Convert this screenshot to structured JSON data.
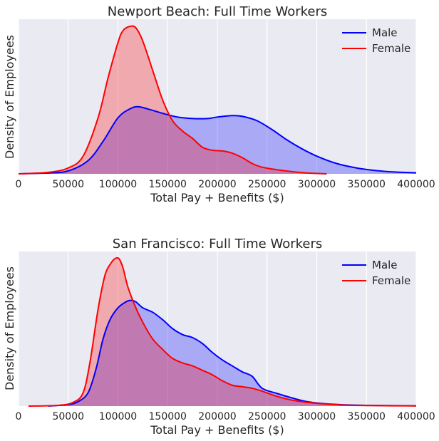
{
  "chart_data": [
    {
      "type": "area",
      "title": "Newport Beach: Full Time Workers",
      "xlabel": "Total Pay + Benefits ($)",
      "ylabel": "Density of Employees",
      "xlim": [
        0,
        400000
      ],
      "ylim": [
        0,
        1.0
      ],
      "xticks": [
        "0",
        "50000",
        "100000",
        "150000",
        "200000",
        "250000",
        "300000",
        "350000",
        "400000"
      ],
      "grid": "vertical",
      "legend": "top-right",
      "series": [
        {
          "name": "Male",
          "color": "#0000ff",
          "fill": "#a9aff7",
          "x": [
            0,
            30000,
            50000,
            70000,
            85000,
            100000,
            112000,
            120000,
            130000,
            145000,
            160000,
            175000,
            190000,
            200000,
            215000,
            225000,
            240000,
            255000,
            270000,
            285000,
            300000,
            320000,
            340000,
            360000,
            380000,
            400000
          ],
          "y": [
            0,
            0.006,
            0.02,
            0.09,
            0.22,
            0.38,
            0.44,
            0.455,
            0.44,
            0.41,
            0.385,
            0.375,
            0.375,
            0.385,
            0.395,
            0.39,
            0.36,
            0.3,
            0.23,
            0.17,
            0.12,
            0.07,
            0.04,
            0.022,
            0.012,
            0.007
          ]
        },
        {
          "name": "Female",
          "color": "#ff0000",
          "fill": "#f2b0b6",
          "x": [
            0,
            30000,
            50000,
            65000,
            80000,
            90000,
            100000,
            105000,
            112000,
            118000,
            125000,
            135000,
            145000,
            155000,
            165000,
            175000,
            185000,
            195000,
            205000,
            215000,
            225000,
            235000,
            245000,
            260000,
            275000,
            290000,
            310000
          ],
          "y": [
            0,
            0.01,
            0.04,
            0.12,
            0.38,
            0.65,
            0.89,
            0.97,
            1.0,
            0.99,
            0.9,
            0.7,
            0.5,
            0.36,
            0.29,
            0.24,
            0.18,
            0.16,
            0.155,
            0.14,
            0.11,
            0.07,
            0.045,
            0.028,
            0.015,
            0.006,
            0
          ]
        }
      ]
    },
    {
      "type": "area",
      "title": "San Francisco: Full Time Workers",
      "xlabel": "Total Pay + Benefits ($)",
      "ylabel": "Density of Employees",
      "xlim": [
        0,
        400000
      ],
      "ylim": [
        0,
        1.0
      ],
      "xticks": [
        "0",
        "50000",
        "100000",
        "150000",
        "200000",
        "250000",
        "300000",
        "350000",
        "400000"
      ],
      "grid": "vertical",
      "legend": "top-right",
      "series": [
        {
          "name": "Male",
          "color": "#0000ff",
          "fill": "#a9aff7",
          "x": [
            30000,
            50000,
            60000,
            70000,
            78000,
            85000,
            92000,
            100000,
            108000,
            113000,
            118000,
            125000,
            135000,
            145000,
            155000,
            165000,
            175000,
            185000,
            195000,
            205000,
            215000,
            225000,
            235000,
            245000,
            260000,
            275000,
            290000,
            310000,
            330000,
            360000,
            400000
          ],
          "y": [
            0,
            0.01,
            0.03,
            0.09,
            0.25,
            0.45,
            0.58,
            0.66,
            0.7,
            0.71,
            0.7,
            0.66,
            0.63,
            0.58,
            0.52,
            0.48,
            0.46,
            0.42,
            0.36,
            0.31,
            0.27,
            0.23,
            0.2,
            0.12,
            0.085,
            0.055,
            0.03,
            0.015,
            0.008,
            0.004,
            0.002
          ]
        },
        {
          "name": "Female",
          "color": "#ff0000",
          "fill": "#f2b0b6",
          "x": [
            10000,
            40000,
            55000,
            65000,
            72000,
            80000,
            87000,
            93000,
            97000,
            101000,
            105000,
            110000,
            118000,
            126000,
            135000,
            145000,
            155000,
            165000,
            175000,
            185000,
            195000,
            205000,
            215000,
            225000,
            235000,
            245000,
            260000,
            275000,
            290000,
            310000,
            330000,
            360000,
            400000
          ],
          "y": [
            0,
            0.005,
            0.025,
            0.09,
            0.3,
            0.65,
            0.88,
            0.96,
            0.99,
            0.99,
            0.93,
            0.8,
            0.66,
            0.55,
            0.45,
            0.38,
            0.32,
            0.29,
            0.27,
            0.24,
            0.21,
            0.17,
            0.14,
            0.13,
            0.12,
            0.1,
            0.065,
            0.04,
            0.025,
            0.013,
            0.006,
            0.003,
            0.001
          ]
        }
      ]
    }
  ]
}
